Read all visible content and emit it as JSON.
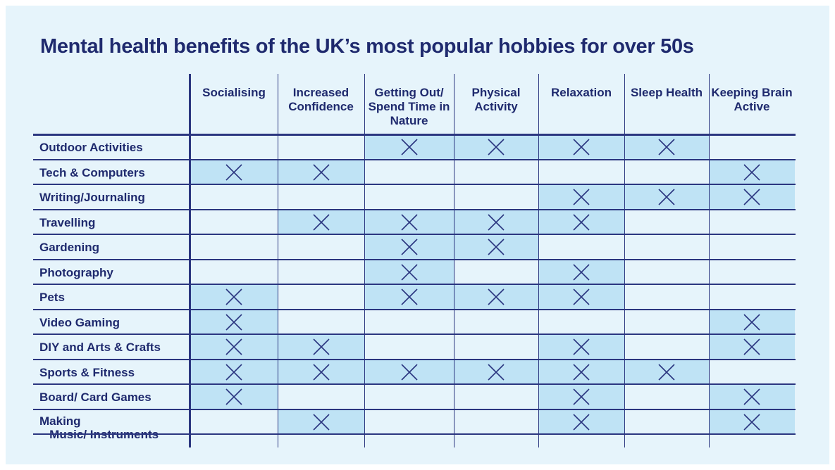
{
  "chart_data": {
    "type": "table",
    "title": "Mental health benefits of the UK’s most popular hobbies for over 50s",
    "columns": [
      "Socialising",
      "Increased Confidence",
      "Getting Out/ Spend Time in Nature",
      "Physical Activity",
      "Relaxation",
      "Sleep Health",
      "Keeping Brain Active"
    ],
    "rows": [
      {
        "label": "Outdoor Activities",
        "marks": [
          0,
          0,
          1,
          1,
          1,
          1,
          0
        ]
      },
      {
        "label": "Tech & Computers",
        "marks": [
          1,
          1,
          0,
          0,
          0,
          0,
          1
        ]
      },
      {
        "label": "Writing/Journaling",
        "marks": [
          0,
          0,
          0,
          0,
          1,
          1,
          1
        ]
      },
      {
        "label": "Travelling",
        "marks": [
          0,
          1,
          1,
          1,
          1,
          0,
          0
        ]
      },
      {
        "label": "Gardening",
        "marks": [
          0,
          0,
          1,
          1,
          0,
          0,
          0
        ]
      },
      {
        "label": "Photography",
        "marks": [
          0,
          0,
          1,
          0,
          1,
          0,
          0
        ]
      },
      {
        "label": "Pets",
        "marks": [
          1,
          0,
          1,
          1,
          1,
          0,
          0
        ]
      },
      {
        "label": "Video Gaming",
        "marks": [
          1,
          0,
          0,
          0,
          0,
          0,
          1
        ]
      },
      {
        "label": "DIY and Arts & Crafts",
        "marks": [
          1,
          1,
          0,
          0,
          1,
          0,
          1
        ]
      },
      {
        "label": "Sports & Fitness",
        "marks": [
          1,
          1,
          1,
          1,
          1,
          1,
          0
        ]
      },
      {
        "label": "Board/ Card Games",
        "marks": [
          1,
          0,
          0,
          0,
          1,
          0,
          1
        ]
      },
      {
        "label": "Making Music/ Instruments",
        "marks": [
          0,
          1,
          0,
          0,
          1,
          0,
          1
        ]
      }
    ],
    "mark_symbol": "cross-icon",
    "colors": {
      "background": "#e6f4fb",
      "marked_cell": "#bfe3f5",
      "text": "#1f2a6e"
    }
  }
}
